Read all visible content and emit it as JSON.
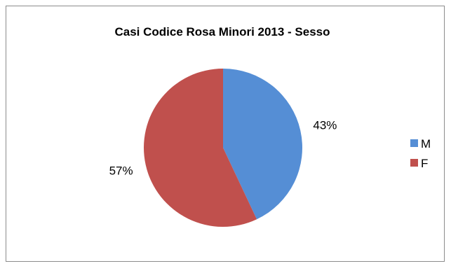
{
  "chart_data": {
    "type": "pie",
    "title": "Casi Codice Rosa Minori 2013 - Sesso",
    "categories": [
      "M",
      "F"
    ],
    "values": [
      43,
      57
    ],
    "data_labels": [
      "43%",
      "57%"
    ],
    "colors": [
      "#558ED5",
      "#C0504D"
    ],
    "legend_position": "right"
  }
}
